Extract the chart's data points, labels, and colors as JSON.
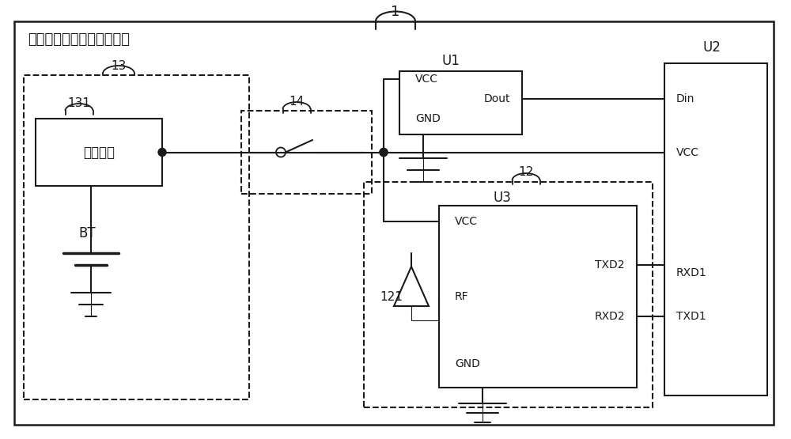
{
  "title": "用于颈椎监护的可穿戴设备",
  "label_1": "1",
  "label_13": "13",
  "label_131": "131",
  "label_14": "14",
  "label_12": "12",
  "label_121": "121",
  "label_U1": "U1",
  "label_U2": "U2",
  "label_U3": "U3",
  "label_BT": "BT",
  "label_charging": "充电单元",
  "label_VCC": "VCC",
  "label_GND": "GND",
  "label_Dout": "Dout",
  "label_Din": "Din",
  "label_VCC2": "VCC",
  "label_RF": "RF",
  "label_TXD2": "TXD2",
  "label_RXD2": "RXD2",
  "label_RXD1": "RXD1",
  "label_TXD1": "TXD1",
  "bg_color": "#ffffff",
  "line_color": "#1a1a1a",
  "box_color": "#1a1a1a",
  "font_size": 13,
  "font_size_label": 11
}
